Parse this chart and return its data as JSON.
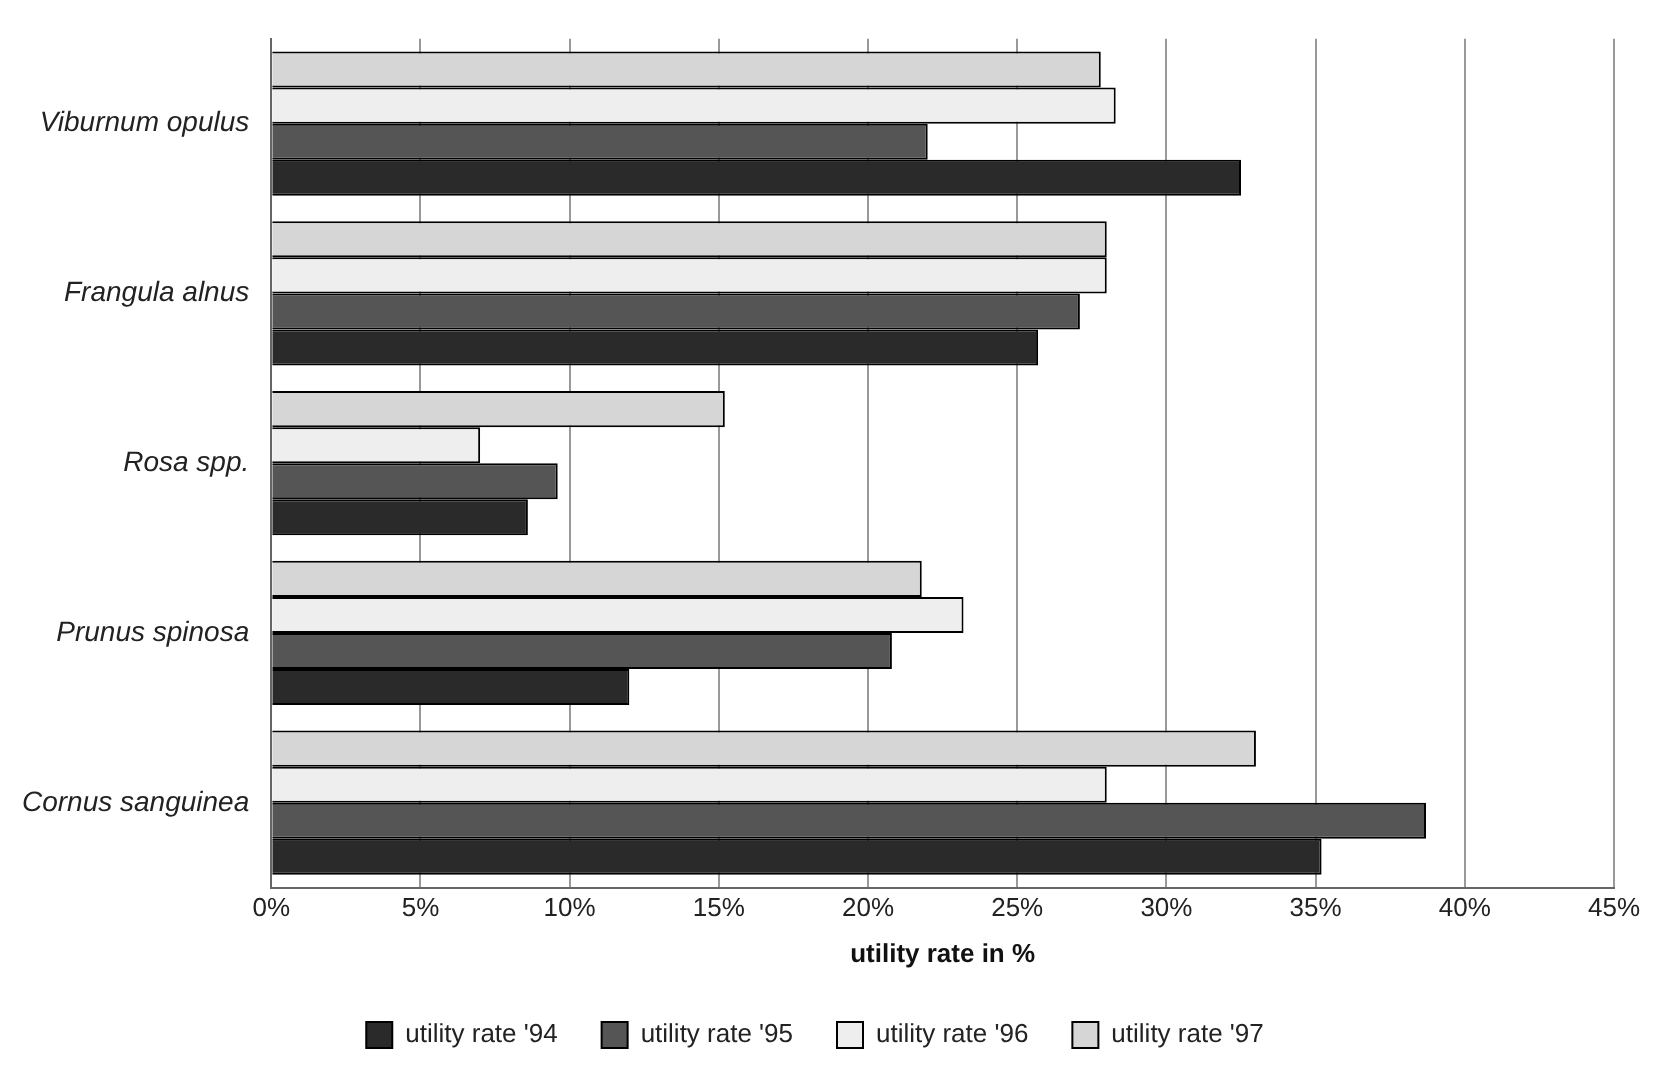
{
  "chart_data": {
    "type": "bar",
    "orientation": "horizontal",
    "xlabel": "utility rate in %",
    "categories": [
      "Viburnum opulus",
      "Frangula alnus",
      "Rosa spp.",
      "Prunus spinosa",
      "Cornus sanguinea"
    ],
    "series": [
      {
        "name": "utility rate '94",
        "color": "#2a2a2a",
        "values": [
          32.5,
          25.7,
          8.6,
          12.0,
          35.2
        ]
      },
      {
        "name": "utility rate '95",
        "color": "#555555",
        "values": [
          22.0,
          27.1,
          9.6,
          20.8,
          38.7
        ]
      },
      {
        "name": "utility rate '96",
        "color": "#eeeeee",
        "values": [
          28.3,
          28.0,
          7.0,
          23.2,
          28.0
        ]
      },
      {
        "name": "utility rate '97",
        "color": "#d6d6d6",
        "values": [
          27.8,
          28.0,
          15.2,
          21.8,
          33.0
        ]
      }
    ],
    "xlim": [
      0,
      45
    ],
    "xticks": [
      {
        "value": 0,
        "label": "0%"
      },
      {
        "value": 5,
        "label": "5%"
      },
      {
        "value": 10,
        "label": "10%"
      },
      {
        "value": 15,
        "label": "15%"
      },
      {
        "value": 20,
        "label": "20%"
      },
      {
        "value": 25,
        "label": "25%"
      },
      {
        "value": 30,
        "label": "30%"
      },
      {
        "value": 35,
        "label": "35%"
      },
      {
        "value": 40,
        "label": "40%"
      },
      {
        "value": 45,
        "label": "45%"
      }
    ],
    "grid": "x",
    "legend": "bottom"
  }
}
